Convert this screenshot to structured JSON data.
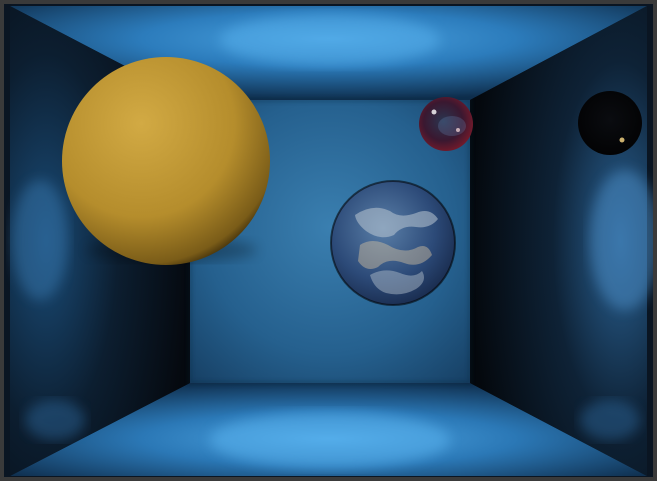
{
  "scene": {
    "type": "ray-traced-render",
    "frame_color": "#3a3a3a",
    "room": {
      "back_wall": "#2e6f9e",
      "ceiling": "#2a78b8",
      "floor": "#2a74b0",
      "left_wall": "#0b1622",
      "right_wall": "#0b1622",
      "light_highlight": "#4aa2e0"
    },
    "objects": [
      {
        "name": "gold-sphere",
        "material": "matte-gold",
        "color": "#c9a23a"
      },
      {
        "name": "earth-sphere",
        "material": "earth-texture",
        "color": "#3a5f8a"
      },
      {
        "name": "red-glass-sphere",
        "material": "reflective-red",
        "color": "#6a1e2a"
      },
      {
        "name": "black-glass-sphere",
        "material": "reflective-black",
        "color": "#0a0a0a"
      }
    ]
  }
}
